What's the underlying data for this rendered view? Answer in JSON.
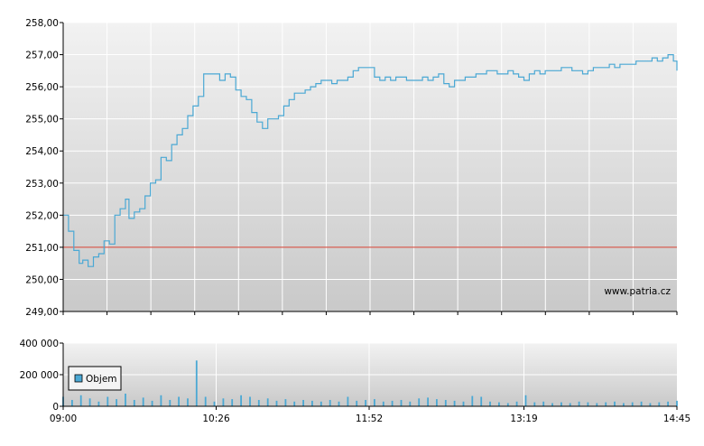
{
  "colors": {
    "price_line": "#4aa8d4",
    "reference_line": "#d03a2a",
    "volume_bar": "#4aa8d4",
    "plot_bg_top": "#f2f2f2",
    "plot_bg_bottom": "#c9c9c9",
    "grid": "#ffffff"
  },
  "chart_data": [
    {
      "type": "line",
      "title": "",
      "xlabel": "",
      "ylabel": "",
      "grid": true,
      "ylim": [
        249.0,
        258.0
      ],
      "y_ticks": [
        "249,00",
        "250,00",
        "251,00",
        "252,00",
        "253,00",
        "254,00",
        "255,00",
        "256,00",
        "257,00",
        "258,00"
      ],
      "y_tick_values": [
        249,
        250,
        251,
        252,
        253,
        254,
        255,
        256,
        257,
        258
      ],
      "reference_value": 251.0,
      "watermark": "www.patria.cz",
      "series": [
        {
          "x": [
            "09:00",
            "09:03",
            "09:06",
            "09:09",
            "09:11",
            "09:14",
            "09:17",
            "09:20",
            "09:23",
            "09:26",
            "09:29",
            "09:32",
            "09:35",
            "09:37",
            "09:40",
            "09:43",
            "09:46",
            "09:49",
            "09:52",
            "09:55",
            "09:58",
            "10:01",
            "10:04",
            "10:07",
            "10:10",
            "10:13",
            "10:16",
            "10:19",
            "10:22",
            "10:25",
            "10:28",
            "10:31",
            "10:34",
            "10:37",
            "10:40",
            "10:43",
            "10:46",
            "10:49",
            "10:52",
            "10:55",
            "10:58",
            "11:01",
            "11:04",
            "11:07",
            "11:10",
            "11:13",
            "11:16",
            "11:19",
            "11:22",
            "11:25",
            "11:28",
            "11:31",
            "11:34",
            "11:37",
            "11:40",
            "11:43",
            "11:46",
            "11:49",
            "11:52",
            "11:55",
            "11:58",
            "12:01",
            "12:04",
            "12:07",
            "12:10",
            "12:13",
            "12:16",
            "12:19",
            "12:22",
            "12:25",
            "12:28",
            "12:31",
            "12:34",
            "12:37",
            "12:40",
            "12:43",
            "12:46",
            "12:49",
            "12:52",
            "12:55",
            "12:58",
            "13:01",
            "13:04",
            "13:07",
            "13:10",
            "13:13",
            "13:16",
            "13:19",
            "13:22",
            "13:25",
            "13:28",
            "13:31",
            "13:34",
            "13:37",
            "13:40",
            "13:43",
            "13:46",
            "13:49",
            "13:52",
            "13:55",
            "13:58",
            "14:01",
            "14:04",
            "14:07",
            "14:10",
            "14:13",
            "14:16",
            "14:19",
            "14:22",
            "14:25",
            "14:28",
            "14:31",
            "14:34",
            "14:37",
            "14:40",
            "14:43",
            "14:45"
          ],
          "values": [
            252.0,
            251.5,
            250.9,
            250.5,
            250.6,
            250.4,
            250.7,
            250.8,
            251.2,
            251.1,
            252.0,
            252.2,
            252.5,
            251.9,
            252.1,
            252.2,
            252.6,
            253.0,
            253.1,
            253.8,
            253.7,
            254.2,
            254.5,
            254.7,
            255.1,
            255.4,
            255.7,
            256.4,
            256.4,
            256.4,
            256.2,
            256.4,
            256.3,
            255.9,
            255.7,
            255.6,
            255.2,
            254.9,
            254.7,
            255.0,
            255.0,
            255.1,
            255.4,
            255.6,
            255.8,
            255.8,
            255.9,
            256.0,
            256.1,
            256.2,
            256.2,
            256.1,
            256.2,
            256.2,
            256.3,
            256.5,
            256.6,
            256.6,
            256.6,
            256.3,
            256.2,
            256.3,
            256.2,
            256.3,
            256.3,
            256.2,
            256.2,
            256.2,
            256.3,
            256.2,
            256.3,
            256.4,
            256.1,
            256.0,
            256.2,
            256.2,
            256.3,
            256.3,
            256.4,
            256.4,
            256.5,
            256.5,
            256.4,
            256.4,
            256.5,
            256.4,
            256.3,
            256.2,
            256.4,
            256.5,
            256.4,
            256.5,
            256.5,
            256.5,
            256.6,
            256.6,
            256.5,
            256.5,
            256.4,
            256.5,
            256.6,
            256.6,
            256.6,
            256.7,
            256.6,
            256.7,
            256.7,
            256.7,
            256.8,
            256.8,
            256.8,
            256.9,
            256.8,
            256.9,
            257.0,
            256.8,
            256.5
          ]
        }
      ]
    },
    {
      "type": "bar",
      "title": "",
      "xlabel": "",
      "ylabel": "",
      "grid": true,
      "ylim": [
        0,
        400000
      ],
      "y_ticks": [
        "0",
        "200 000",
        "400 000"
      ],
      "y_tick_values": [
        0,
        200000,
        400000
      ],
      "x_ticks": [
        "09:00",
        "10:26",
        "11:52",
        "13:19",
        "14:45"
      ],
      "legend": {
        "label": "Objem",
        "placement": "left"
      },
      "series": [
        {
          "name": "Objem",
          "x": [
            "09:00",
            "09:05",
            "09:10",
            "09:15",
            "09:20",
            "09:25",
            "09:30",
            "09:35",
            "09:40",
            "09:45",
            "09:50",
            "09:55",
            "10:00",
            "10:05",
            "10:10",
            "10:15",
            "10:20",
            "10:25",
            "10:30",
            "10:35",
            "10:40",
            "10:45",
            "10:50",
            "10:55",
            "11:00",
            "11:05",
            "11:10",
            "11:15",
            "11:20",
            "11:25",
            "11:30",
            "11:35",
            "11:40",
            "11:45",
            "11:50",
            "11:55",
            "12:00",
            "12:05",
            "12:10",
            "12:15",
            "12:20",
            "12:25",
            "12:30",
            "12:35",
            "12:40",
            "12:45",
            "12:50",
            "12:55",
            "13:00",
            "13:05",
            "13:10",
            "13:15",
            "13:20",
            "13:25",
            "13:30",
            "13:35",
            "13:40",
            "13:45",
            "13:50",
            "13:55",
            "14:00",
            "14:05",
            "14:10",
            "14:15",
            "14:20",
            "14:25",
            "14:30",
            "14:35",
            "14:40",
            "14:45"
          ],
          "values": [
            60000,
            40000,
            70000,
            50000,
            30000,
            60000,
            45000,
            80000,
            40000,
            55000,
            35000,
            70000,
            40000,
            60000,
            50000,
            290000,
            60000,
            30000,
            50000,
            45000,
            70000,
            60000,
            40000,
            50000,
            35000,
            45000,
            30000,
            40000,
            35000,
            30000,
            40000,
            30000,
            60000,
            35000,
            40000,
            45000,
            30000,
            35000,
            40000,
            30000,
            50000,
            55000,
            45000,
            40000,
            35000,
            30000,
            65000,
            60000,
            30000,
            25000,
            20000,
            30000,
            70000,
            25000,
            30000,
            20000,
            25000,
            20000,
            30000,
            25000,
            20000,
            25000,
            30000,
            20000,
            25000,
            30000,
            20000,
            25000,
            30000,
            35000
          ]
        }
      ]
    }
  ]
}
